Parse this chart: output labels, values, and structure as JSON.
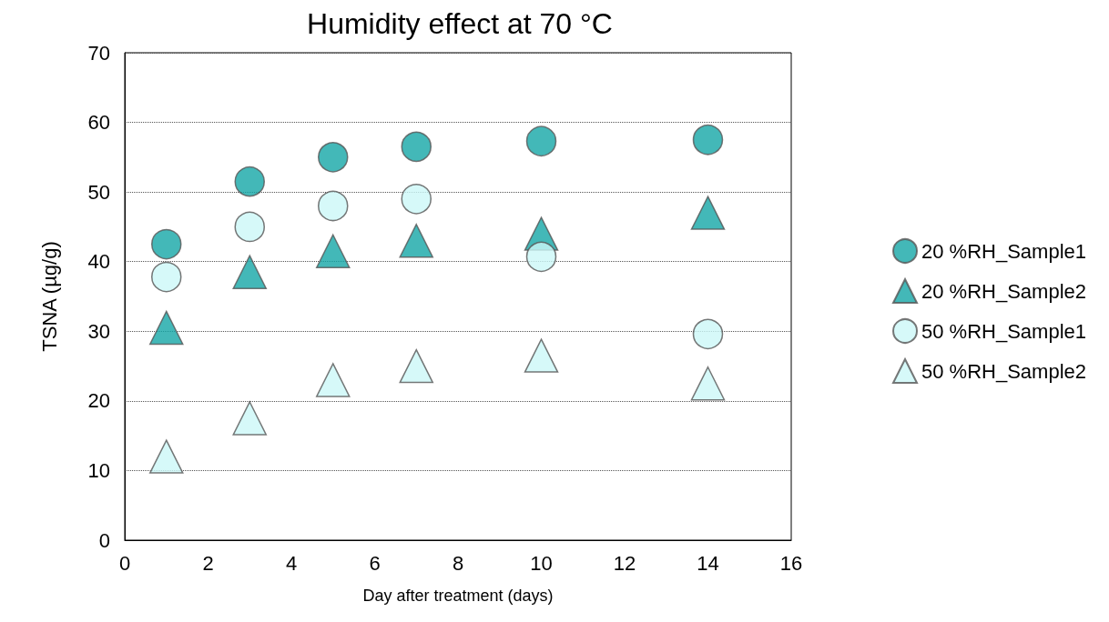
{
  "chart_data": {
    "type": "scatter",
    "title": "Humidity effect at 70 °C",
    "xlabel": "Day after treatment (days)",
    "ylabel": "TSNA (µg/g)",
    "x": [
      1,
      3,
      5,
      7,
      10,
      14
    ],
    "series": [
      {
        "name": "20 %RH_Sample1",
        "color": "#14a6a6",
        "marker": "circle",
        "values": [
          42.5,
          51.5,
          55,
          56.5,
          57.3,
          57.5
        ]
      },
      {
        "name": "20 %RH_Sample2",
        "color": "#14a6a6",
        "marker": "triangle",
        "values": [
          30.5,
          38.5,
          41.5,
          43,
          44,
          47
        ]
      },
      {
        "name": "50 %RH_Sample1",
        "color": "#ccf7f7",
        "marker": "circle",
        "values": [
          37.8,
          45,
          48,
          49,
          40.7,
          29.6
        ]
      },
      {
        "name": "50 %RH_Sample2",
        "color": "#ccf7f7",
        "marker": "triangle",
        "values": [
          12,
          17.5,
          23,
          25,
          26.5,
          22.5
        ]
      }
    ],
    "xlim": [
      0,
      16
    ],
    "xticks": [
      0,
      2,
      4,
      6,
      8,
      10,
      12,
      14,
      16
    ],
    "ylim": [
      0,
      70
    ],
    "yticks": [
      0,
      10,
      20,
      30,
      40,
      50,
      60,
      70
    ],
    "grid": "y",
    "legend": "right"
  }
}
